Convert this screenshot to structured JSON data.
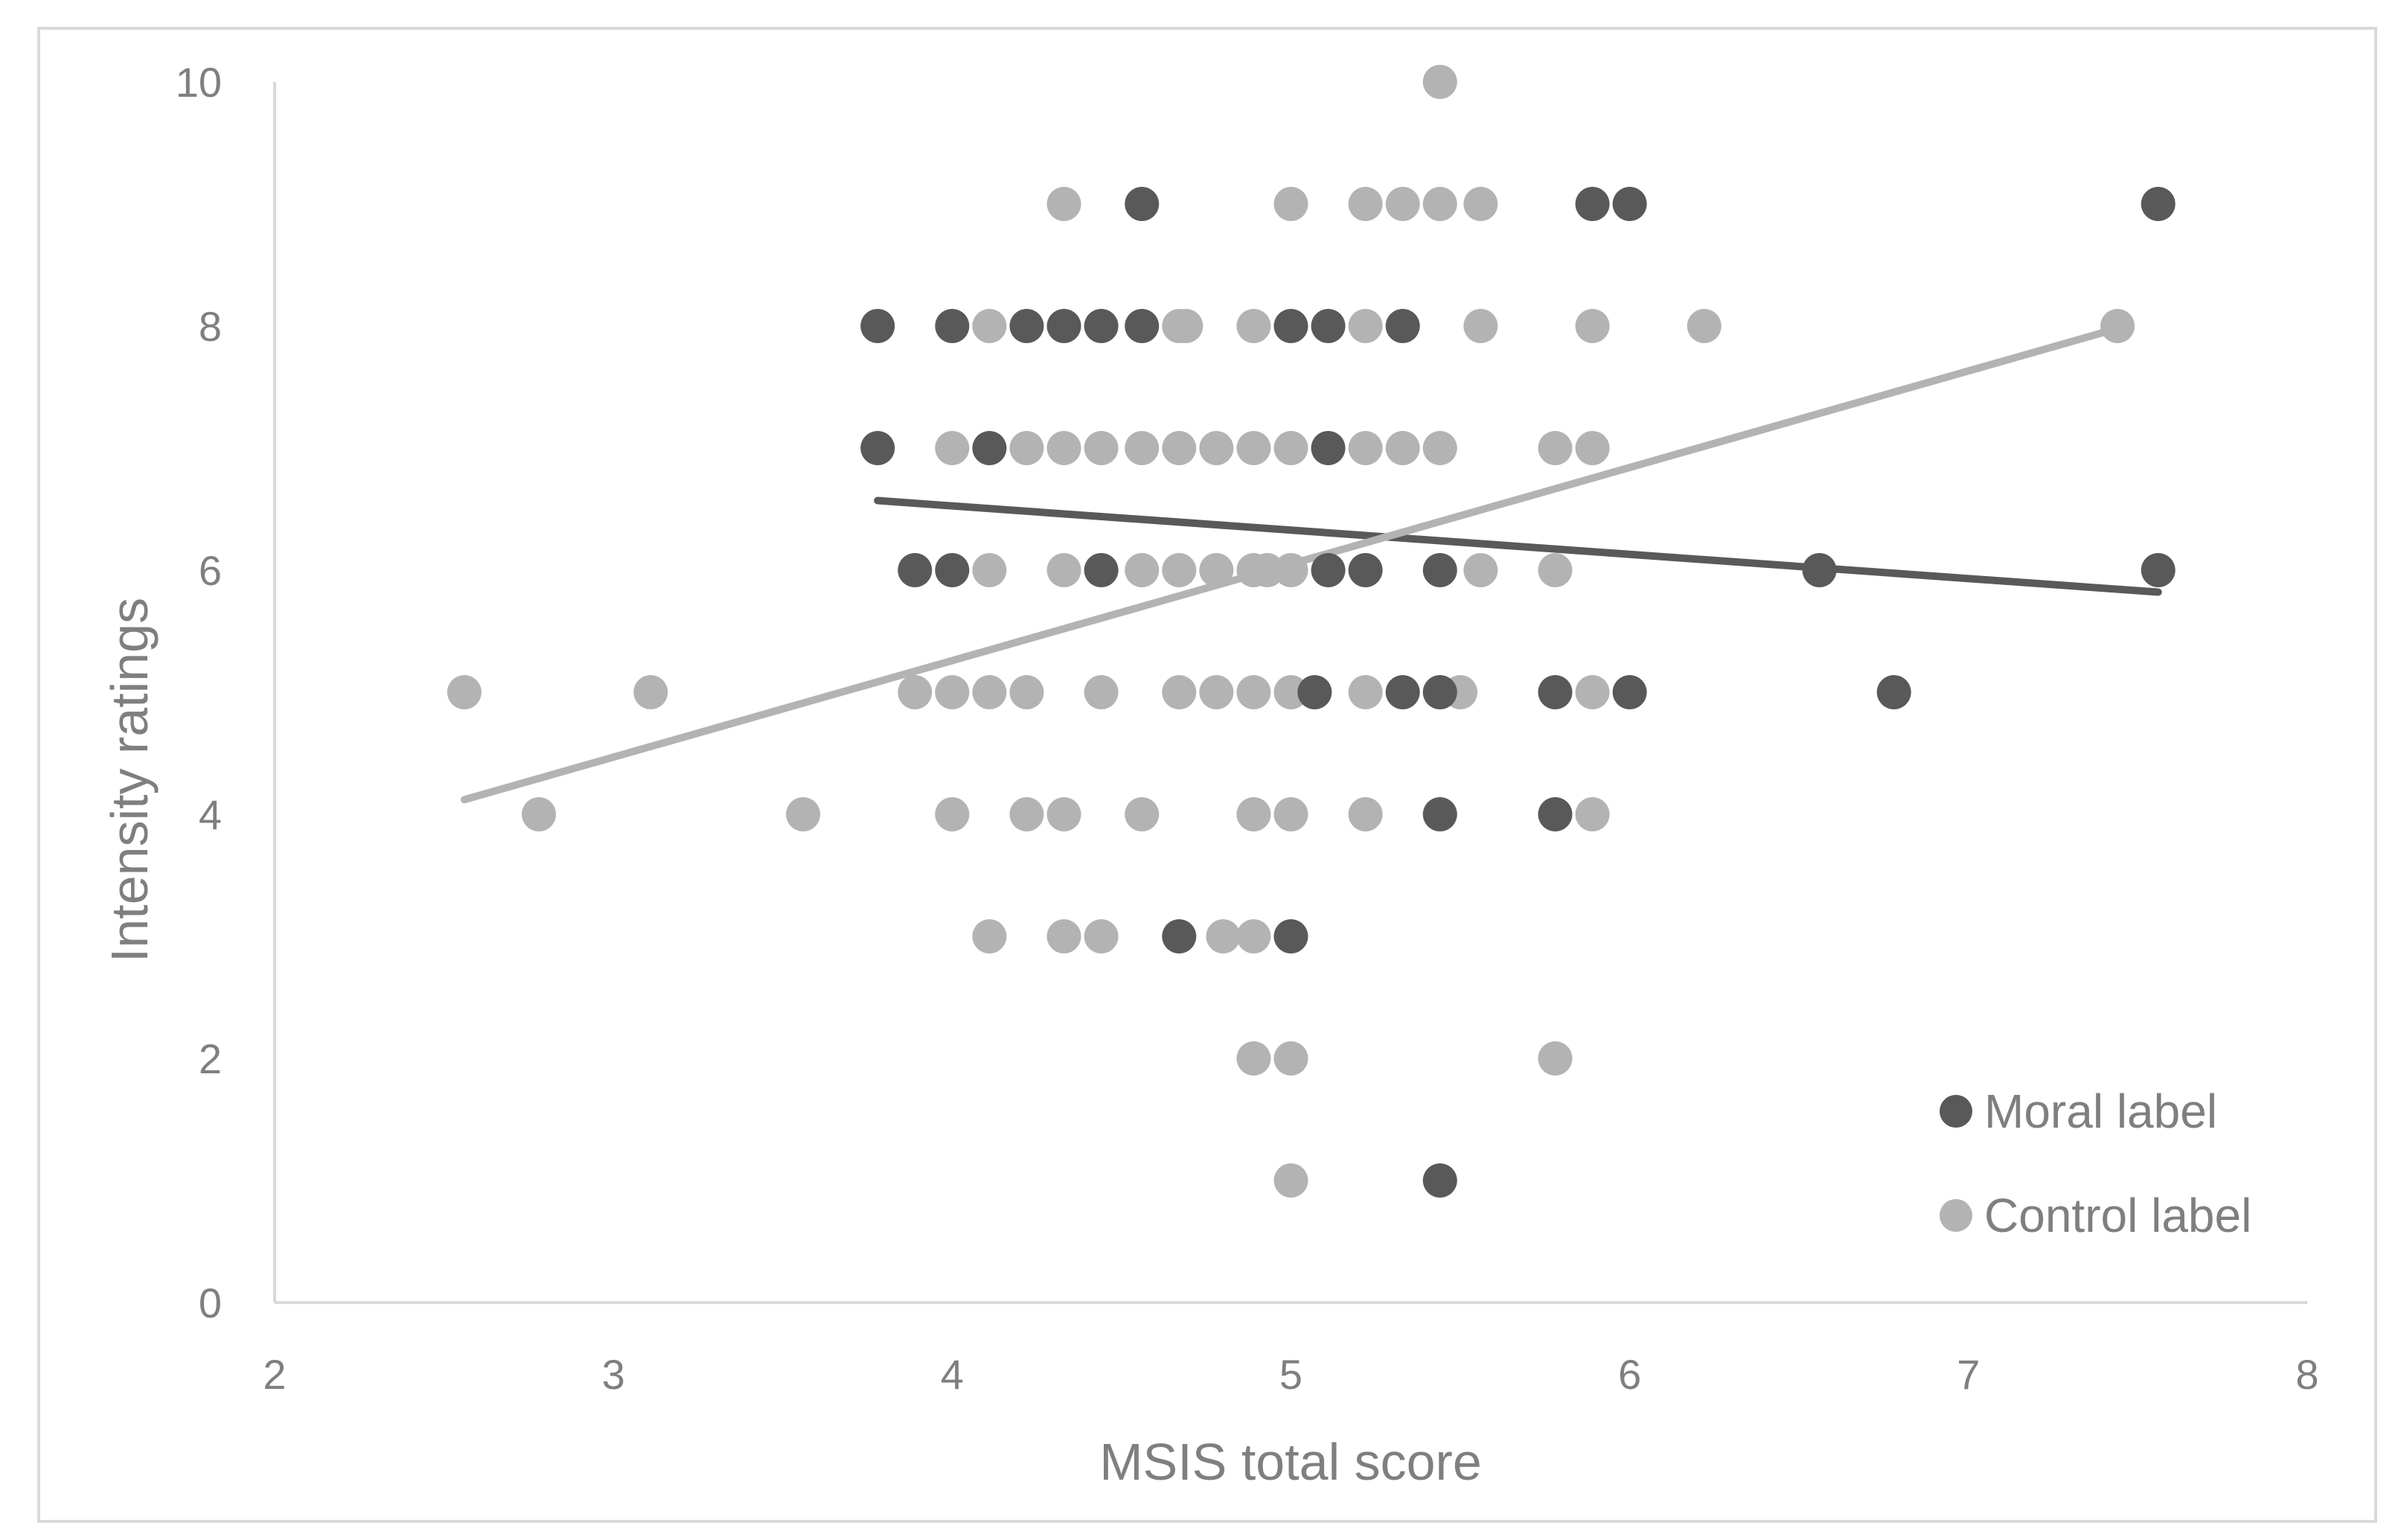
{
  "chart_data": {
    "type": "scatter",
    "title": "",
    "xlabel": "MSIS total score",
    "ylabel": "Intensity ratings",
    "xlim": [
      2,
      8
    ],
    "ylim": [
      0,
      10
    ],
    "x_ticks": [
      "2",
      "3",
      "4",
      "5",
      "6",
      "7",
      "8"
    ],
    "y_ticks": [
      "0",
      "2",
      "4",
      "6",
      "8",
      "10"
    ],
    "grid": false,
    "legend_position": "bottom-right",
    "series": [
      {
        "name": "Moral label",
        "color": "#595959",
        "points": [
          [
            4.56,
            9
          ],
          [
            5.89,
            9
          ],
          [
            6.0,
            9
          ],
          [
            7.56,
            9
          ],
          [
            3.78,
            8
          ],
          [
            4.0,
            8
          ],
          [
            4.22,
            8
          ],
          [
            4.33,
            8
          ],
          [
            4.44,
            8
          ],
          [
            4.56,
            8
          ],
          [
            5.0,
            8
          ],
          [
            5.11,
            8
          ],
          [
            5.33,
            8
          ],
          [
            3.78,
            7
          ],
          [
            4.11,
            7
          ],
          [
            5.11,
            7
          ],
          [
            3.89,
            6
          ],
          [
            4.0,
            6
          ],
          [
            4.44,
            6
          ],
          [
            5.11,
            6
          ],
          [
            5.22,
            6
          ],
          [
            5.44,
            6
          ],
          [
            6.56,
            6
          ],
          [
            7.56,
            6
          ],
          [
            5.07,
            5
          ],
          [
            5.33,
            5
          ],
          [
            5.44,
            5
          ],
          [
            5.78,
            5
          ],
          [
            6.0,
            5
          ],
          [
            6.78,
            5
          ],
          [
            5.44,
            4
          ],
          [
            5.78,
            4
          ],
          [
            4.67,
            3
          ],
          [
            5.0,
            3
          ],
          [
            5.44,
            1
          ]
        ],
        "trendline": {
          "x": [
            3.78,
            7.56
          ],
          "y": [
            6.57,
            5.82
          ]
        }
      },
      {
        "name": "Control label",
        "color": "#b3b3b3",
        "points": [
          [
            5.44,
            10
          ],
          [
            4.33,
            9
          ],
          [
            5.0,
            9
          ],
          [
            5.22,
            9
          ],
          [
            5.33,
            9
          ],
          [
            5.44,
            9
          ],
          [
            5.56,
            9
          ],
          [
            4.11,
            8
          ],
          [
            4.67,
            8
          ],
          [
            4.69,
            8
          ],
          [
            4.89,
            8
          ],
          [
            5.22,
            8
          ],
          [
            5.56,
            8
          ],
          [
            5.89,
            8
          ],
          [
            6.22,
            8
          ],
          [
            7.44,
            8
          ],
          [
            4.0,
            7
          ],
          [
            4.22,
            7
          ],
          [
            4.33,
            7
          ],
          [
            4.44,
            7
          ],
          [
            4.56,
            7
          ],
          [
            4.67,
            7
          ],
          [
            4.78,
            7
          ],
          [
            4.89,
            7
          ],
          [
            5.0,
            7
          ],
          [
            5.22,
            7
          ],
          [
            5.33,
            7
          ],
          [
            5.44,
            7
          ],
          [
            5.78,
            7
          ],
          [
            5.89,
            7
          ],
          [
            4.11,
            6
          ],
          [
            4.33,
            6
          ],
          [
            4.56,
            6
          ],
          [
            4.67,
            6
          ],
          [
            4.78,
            6
          ],
          [
            4.89,
            6
          ],
          [
            4.93,
            6
          ],
          [
            5.0,
            6
          ],
          [
            5.56,
            6
          ],
          [
            5.78,
            6
          ],
          [
            2.56,
            5
          ],
          [
            3.11,
            5
          ],
          [
            3.89,
            5
          ],
          [
            4.0,
            5
          ],
          [
            4.11,
            5
          ],
          [
            4.22,
            5
          ],
          [
            4.44,
            5
          ],
          [
            4.67,
            5
          ],
          [
            4.78,
            5
          ],
          [
            4.89,
            5
          ],
          [
            5.0,
            5
          ],
          [
            5.22,
            5
          ],
          [
            5.5,
            5
          ],
          [
            5.89,
            5
          ],
          [
            2.78,
            4
          ],
          [
            3.56,
            4
          ],
          [
            4.0,
            4
          ],
          [
            4.22,
            4
          ],
          [
            4.33,
            4
          ],
          [
            4.56,
            4
          ],
          [
            4.89,
            4
          ],
          [
            5.0,
            4
          ],
          [
            5.22,
            4
          ],
          [
            5.89,
            4
          ],
          [
            4.11,
            3
          ],
          [
            4.33,
            3
          ],
          [
            4.44,
            3
          ],
          [
            4.8,
            3
          ],
          [
            4.89,
            3
          ],
          [
            4.89,
            2
          ],
          [
            5.0,
            2
          ],
          [
            5.78,
            2
          ],
          [
            5.0,
            1
          ]
        ],
        "trendline": {
          "x": [
            2.56,
            7.44
          ],
          "y": [
            4.12,
            7.98
          ]
        }
      }
    ]
  }
}
